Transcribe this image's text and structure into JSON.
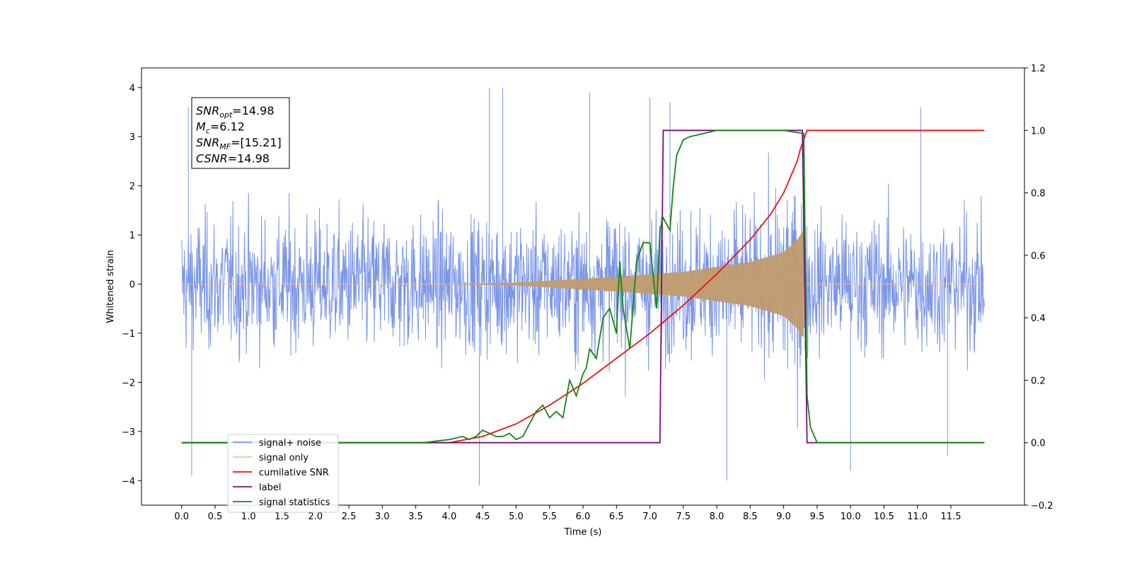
{
  "chart_data": {
    "type": "line",
    "title": "",
    "xlabel": "Time (s)",
    "ylabel": "Whitened strain",
    "y2label": "",
    "xlim": [
      -0.6,
      12.6
    ],
    "ylim": [
      -4.5,
      4.4
    ],
    "y2lim": [
      -0.2,
      1.2
    ],
    "x_ticks": [
      0.0,
      0.5,
      1.0,
      1.5,
      2.0,
      2.5,
      3.0,
      3.5,
      4.0,
      4.5,
      5.0,
      5.5,
      6.0,
      6.5,
      7.0,
      7.5,
      8.0,
      8.5,
      9.0,
      9.5,
      10.0,
      10.5,
      11.0,
      11.5
    ],
    "x_tick_labels": [
      "0.0",
      "0.5",
      "1.0",
      "1.5",
      "2.0",
      "2.5",
      "3.0",
      "3.5",
      "4.0",
      "4.5",
      "5.0",
      "5.5",
      "6.0",
      "6.5",
      "7.0",
      "7.5",
      "8.0",
      "8.5",
      "9.0",
      "9.5",
      "10.0",
      "10.5",
      "11.0",
      "11.5"
    ],
    "y_ticks": [
      4,
      3,
      2,
      1,
      0,
      -1,
      -2,
      -3,
      -4
    ],
    "y_tick_labels": [
      "4",
      "3",
      "2",
      "1",
      "0",
      "−1",
      "−2",
      "−3",
      "−4"
    ],
    "y2_ticks": [
      1.2,
      1.0,
      0.8,
      0.6,
      0.4,
      0.2,
      0.0,
      -0.2
    ],
    "y2_tick_labels": [
      "1.2",
      "1.0",
      "0.8",
      "0.6",
      "0.4",
      "0.2",
      "0.0",
      "−0.2"
    ],
    "noise": {
      "x_start": 0.0,
      "x_end": 12.0,
      "band_sigma": 0.95,
      "peak_max": 4.0,
      "spikes": [
        [
          0.1,
          3.6
        ],
        [
          0.15,
          -3.9
        ],
        [
          4.45,
          -4.1
        ],
        [
          4.6,
          4.0
        ],
        [
          4.8,
          4.0
        ],
        [
          6.1,
          3.9
        ],
        [
          7.0,
          3.8
        ],
        [
          7.3,
          3.7
        ],
        [
          8.15,
          -4.0
        ],
        [
          10.0,
          -3.8
        ],
        [
          11.05,
          3.6
        ],
        [
          11.45,
          -3.5
        ]
      ]
    },
    "chirp": {
      "x_start": 4.0,
      "x_merge": 9.3,
      "amp_merge": 1.1,
      "amp_at": [
        [
          5.0,
          0.03
        ],
        [
          6.5,
          0.15
        ],
        [
          7.5,
          0.25
        ],
        [
          8.5,
          0.45
        ],
        [
          9.0,
          0.65
        ],
        [
          9.2,
          0.9
        ],
        [
          9.3,
          1.1
        ]
      ]
    },
    "series": [
      {
        "name": "signal+ noise",
        "color": "#7b96e8",
        "axis": "left"
      },
      {
        "name": "signal only",
        "color": "#f7c382",
        "axis": "left"
      },
      {
        "name": "cumilative SNR",
        "color": "#ee1111",
        "axis": "right",
        "x": [
          0.0,
          4.0,
          4.5,
          5.0,
          5.5,
          6.0,
          6.5,
          7.0,
          7.5,
          8.0,
          8.5,
          8.8,
          9.0,
          9.1,
          9.2,
          9.25,
          9.3,
          9.35,
          12.0
        ],
        "y": [
          0.0,
          0.0,
          0.02,
          0.06,
          0.12,
          0.19,
          0.27,
          0.35,
          0.44,
          0.54,
          0.65,
          0.73,
          0.8,
          0.85,
          0.9,
          0.94,
          0.97,
          1.0,
          1.0
        ]
      },
      {
        "name": "label",
        "color": "#7b0f7b",
        "axis": "right",
        "x": [
          0.0,
          7.15,
          7.2,
          9.28,
          9.35,
          12.0
        ],
        "y": [
          0.0,
          0.0,
          1.0,
          1.0,
          0.0,
          0.0
        ]
      },
      {
        "name": "signal statistics",
        "color": "#118811",
        "axis": "right",
        "x": [
          0.0,
          3.6,
          4.0,
          4.2,
          4.3,
          4.4,
          4.5,
          4.6,
          4.7,
          4.8,
          4.9,
          5.0,
          5.1,
          5.2,
          5.3,
          5.4,
          5.5,
          5.6,
          5.7,
          5.8,
          5.9,
          6.0,
          6.05,
          6.1,
          6.2,
          6.3,
          6.4,
          6.5,
          6.55,
          6.6,
          6.7,
          6.8,
          6.9,
          7.0,
          7.1,
          7.15,
          7.2,
          7.3,
          7.35,
          7.4,
          7.5,
          7.6,
          7.8,
          8.0,
          9.0,
          9.3,
          9.35,
          9.4,
          9.5,
          9.6,
          12.0
        ],
        "y": [
          0.0,
          0.0,
          0.01,
          0.02,
          0.01,
          0.02,
          0.04,
          0.03,
          0.02,
          0.02,
          0.03,
          0.01,
          0.02,
          0.06,
          0.1,
          0.12,
          0.08,
          0.1,
          0.08,
          0.2,
          0.15,
          0.22,
          0.24,
          0.3,
          0.27,
          0.4,
          0.43,
          0.35,
          0.58,
          0.43,
          0.3,
          0.58,
          0.64,
          0.64,
          0.43,
          0.68,
          0.72,
          0.68,
          0.82,
          0.92,
          0.97,
          0.98,
          0.99,
          1.0,
          1.0,
          0.99,
          0.15,
          0.05,
          0.0,
          0.0,
          0.0
        ]
      }
    ],
    "annotation": {
      "lines": [
        {
          "base": "SNR",
          "sub": "opt",
          "rest": "=14.98"
        },
        {
          "base": "M",
          "sub": "c",
          "rest": "=6.12"
        },
        {
          "base": "SNR",
          "sub": "MF",
          "rest": "=[15.21]"
        },
        {
          "base": "CSNR",
          "sub": "",
          "rest": "=14.98"
        }
      ]
    },
    "legend": {
      "placement": "lower-left",
      "entries": [
        {
          "label": "signal+ noise",
          "color": "#7b96e8"
        },
        {
          "label": "signal only",
          "color": "#f7c382"
        },
        {
          "label": "cumilative SNR",
          "color": "#ee1111"
        },
        {
          "label": "label",
          "color": "#7b0f7b"
        },
        {
          "label": "signal statistics",
          "color": "#118811"
        }
      ]
    },
    "grid": false
  }
}
